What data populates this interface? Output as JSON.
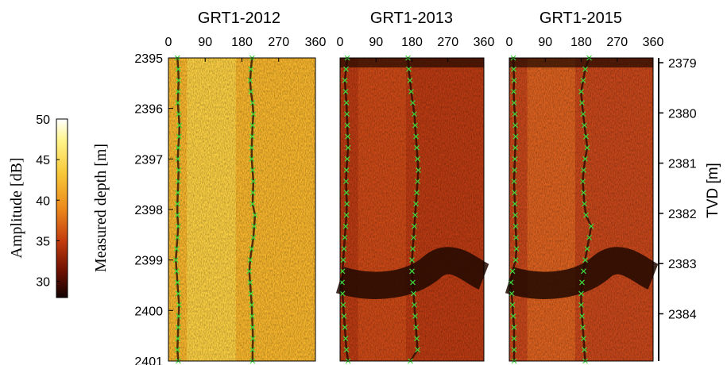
{
  "chart_data": {
    "type": "heatmap",
    "panels": [
      {
        "title": "GRT1-2012",
        "base": "#f6b52c",
        "mid_base": "#fbd749",
        "trace1_x": [
          22,
          24,
          25,
          24,
          23,
          25,
          27,
          26,
          24,
          23,
          25,
          24,
          23,
          22,
          22,
          24,
          22,
          20,
          18,
          20,
          22,
          24,
          26,
          25,
          24,
          23,
          22,
          24
        ],
        "trace2_x": [
          205,
          202,
          200,
          202,
          206,
          208,
          206,
          205,
          204,
          204,
          206,
          208,
          207,
          206,
          212,
          210,
          208,
          204,
          200,
          198,
          200,
          202,
          204,
          205,
          206,
          207,
          206,
          206
        ]
      },
      {
        "title": "GRT1-2013",
        "base": "#b93a12",
        "mid_base": "#d04e18",
        "trace1_x": [
          18,
          15,
          12,
          14,
          16,
          17,
          18,
          19,
          20,
          18,
          16,
          15,
          16,
          17,
          16,
          14,
          12,
          10,
          8,
          6,
          5,
          6,
          8,
          10,
          12,
          14,
          16,
          20
        ],
        "trace2_x": [
          170,
          172,
          175,
          178,
          182,
          186,
          188,
          190,
          192,
          194,
          196,
          194,
          192,
          190,
          188,
          186,
          184,
          182,
          180,
          180,
          182,
          184,
          186,
          188,
          190,
          192,
          194,
          176
        ]
      },
      {
        "title": "GRT1-2015",
        "base": "#c5461a",
        "mid_base": "#e06a22",
        "trace1_x": [
          10,
          11,
          12,
          11,
          12,
          14,
          15,
          16,
          15,
          14,
          13,
          12,
          13,
          14,
          15,
          16,
          17,
          18,
          16,
          8,
          4,
          6,
          8,
          10,
          12,
          12,
          12,
          12
        ],
        "trace2_x": [
          200,
          190,
          185,
          180,
          182,
          185,
          188,
          192,
          195,
          190,
          186,
          184,
          186,
          188,
          192,
          205,
          200,
          195,
          190,
          186,
          182,
          180,
          180,
          182,
          184,
          186,
          188,
          190
        ]
      }
    ],
    "x_ticks": [
      "0",
      "90",
      "180",
      "270",
      "360"
    ],
    "xlim": [
      0,
      360
    ],
    "md_ticks": [
      "2395",
      "2396",
      "2397",
      "2398",
      "2399",
      "2400",
      "2401"
    ],
    "md_range": [
      2395,
      2401
    ],
    "tvd_ticks": [
      "2379",
      "2380",
      "2381",
      "2382",
      "2383",
      "2384"
    ],
    "tvd_range": [
      2379,
      2384.8
    ],
    "md_label": "Measured depth [m]",
    "tvd_label": "TVD [m]",
    "colorbar": {
      "label": "Amplitude [dB]",
      "ticks": [
        "50",
        "45",
        "40",
        "35",
        "30"
      ],
      "range": [
        28,
        50
      ]
    },
    "bands": [
      {
        "depth_from": 2399.0,
        "depth_to": 2399.6
      }
    ],
    "colors": {
      "dark": "#200800",
      "trace": "#3ddc3d"
    }
  }
}
